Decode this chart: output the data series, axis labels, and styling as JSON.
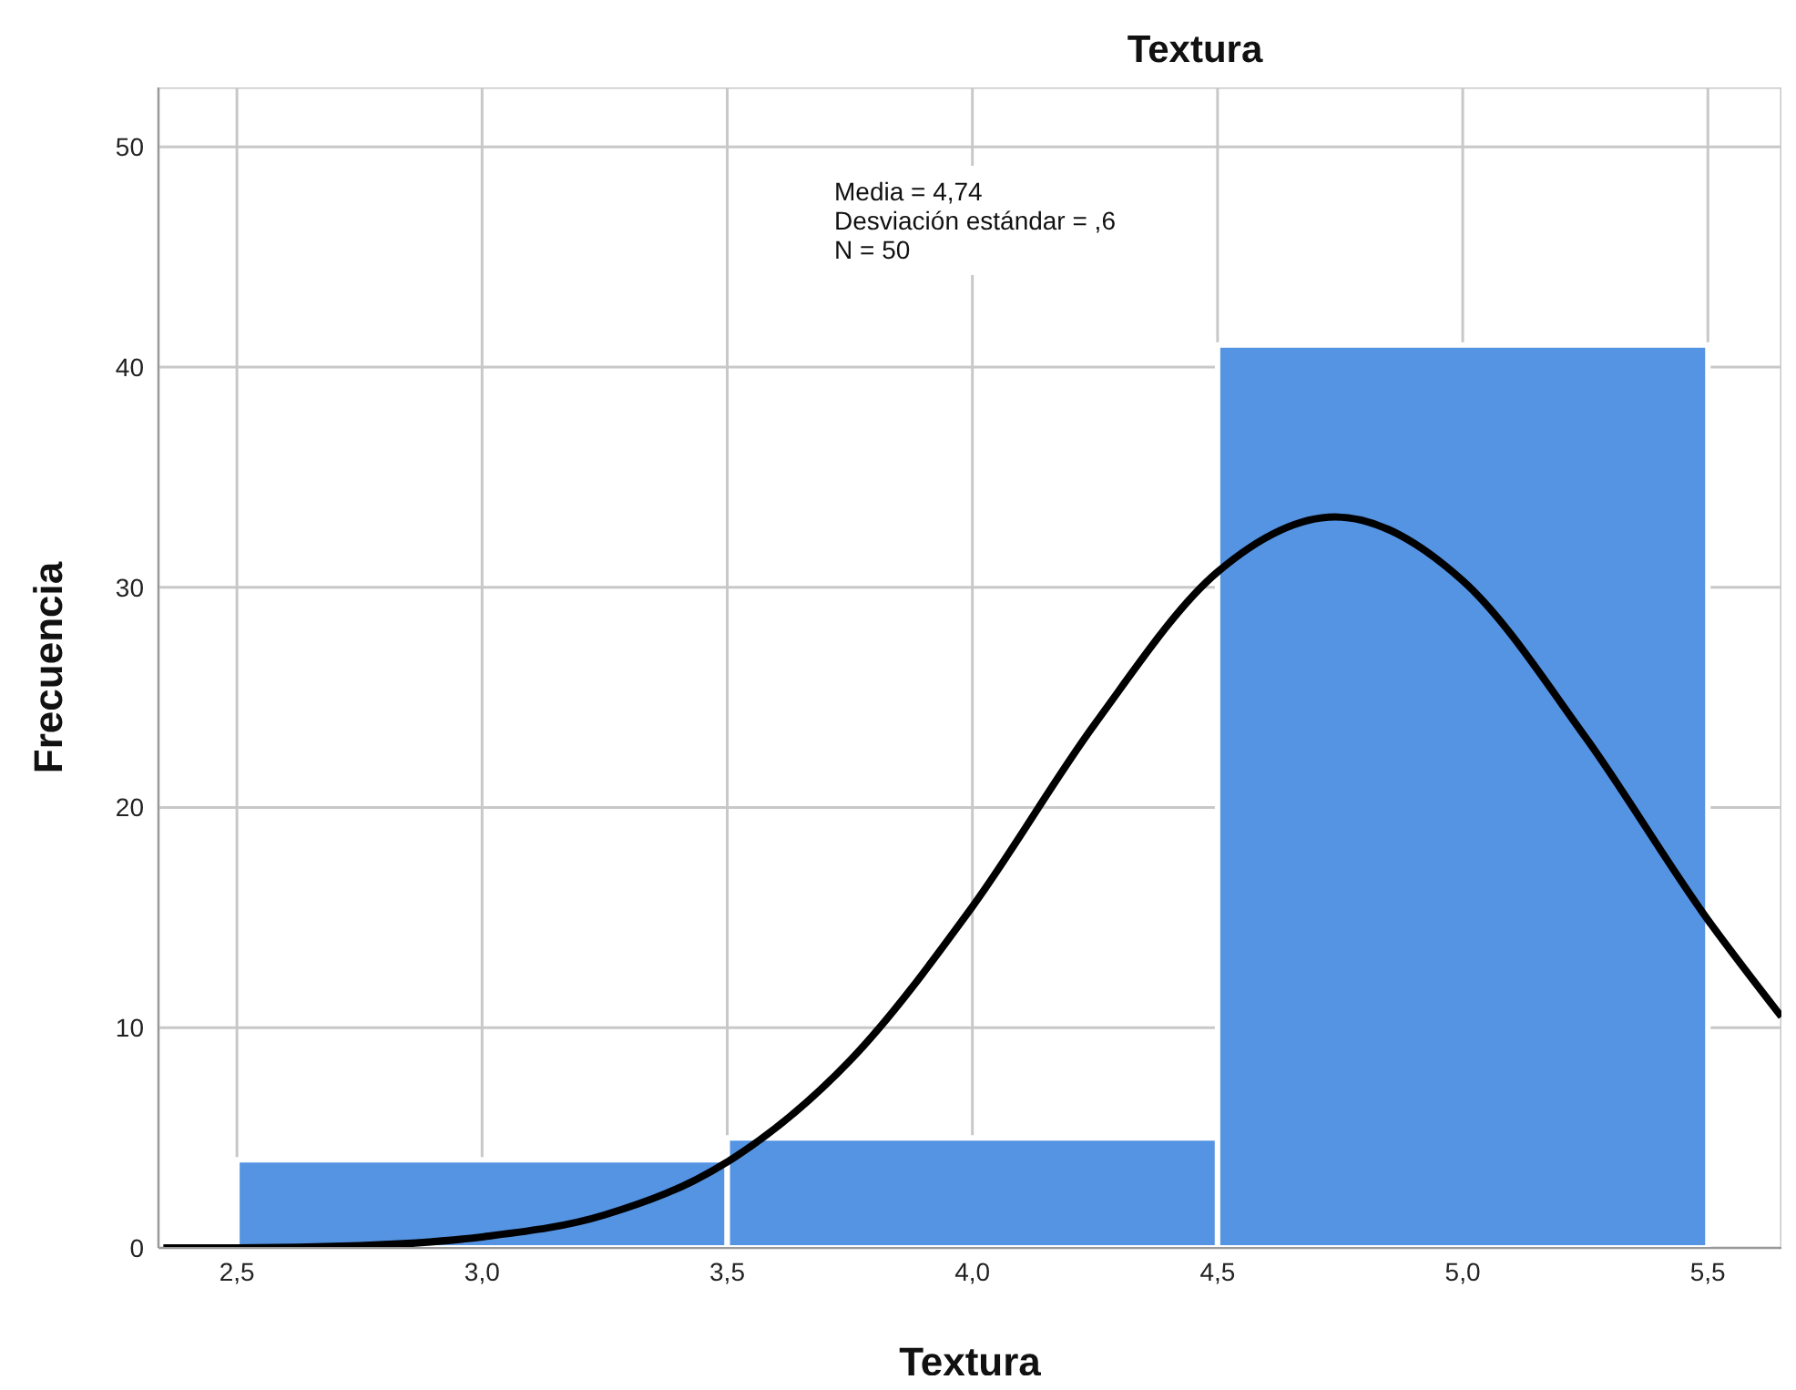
{
  "chart_data": {
    "type": "histogram",
    "title": "Textura",
    "xlabel": "Textura",
    "ylabel": "Frecuencia",
    "bins": [
      2.5,
      3.5,
      4.5,
      5.5
    ],
    "series": [
      {
        "color": "#5594e3",
        "values": [
          4,
          5,
          41
        ]
      },
      {
        "type": "line",
        "color": "#000000",
        "x": [
          2.35,
          2.5,
          2.75,
          3.0,
          3.25,
          3.5,
          3.75,
          4.0,
          4.25,
          4.5,
          4.74,
          5.0,
          5.25,
          5.5,
          5.65
        ],
        "values": [
          0,
          0,
          0.1,
          0.5,
          1.5,
          3.9,
          8.5,
          15.5,
          23.8,
          30.7,
          33.2,
          30.3,
          23.2,
          14.9,
          10.5
        ]
      }
    ],
    "xlim": [
      2.34,
      5.65
    ],
    "xticks": [
      {
        "value": 2.5,
        "label": "2,5"
      },
      {
        "value": 3.0,
        "label": "3,0"
      },
      {
        "value": 3.5,
        "label": "3,5"
      },
      {
        "value": 4.0,
        "label": "4,0"
      },
      {
        "value": 4.5,
        "label": "4,5"
      },
      {
        "value": 5.0,
        "label": "5,0"
      },
      {
        "value": 5.5,
        "label": "5,5"
      }
    ],
    "ylim": [
      0,
      52.7
    ],
    "yticks": [
      0,
      10,
      20,
      30,
      40,
      50
    ],
    "grid": true,
    "annotations": [
      "Media = 4,74",
      "Desviación estándar = ,6",
      "N = 50"
    ]
  }
}
